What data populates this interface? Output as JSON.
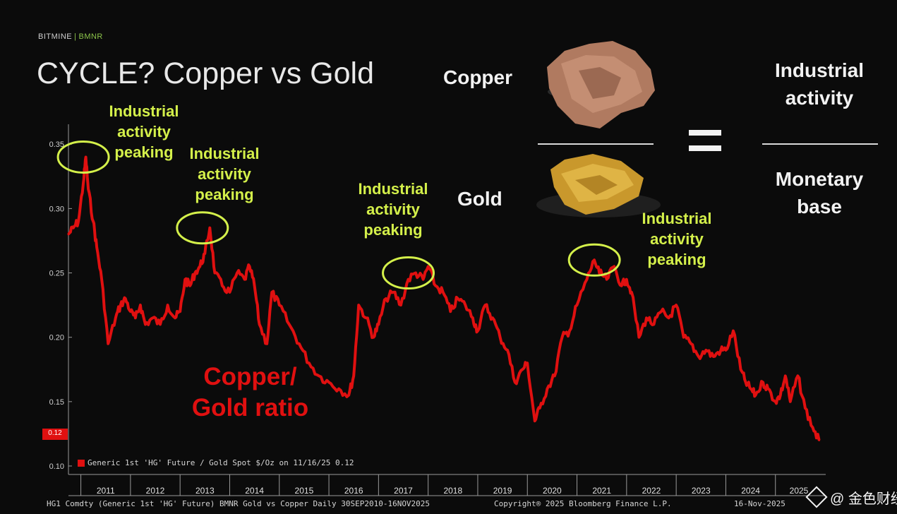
{
  "header": {
    "brand": "BITMINE",
    "separator": "|",
    "ticker": "BMNR",
    "title": "CYCLE? Copper vs Gold"
  },
  "concept": {
    "copper_label": "Copper",
    "gold_label": "Gold",
    "equals": "=",
    "numerator": "Industrial activity",
    "denominator": "Monetary base"
  },
  "annotations": [
    {
      "text": "Industrial activity peaking"
    },
    {
      "text": "Industrial activity peaking"
    },
    {
      "text": "Industrial activity peaking"
    },
    {
      "text": "Industrial activity peaking"
    }
  ],
  "series_label": "Copper/ Gold ratio",
  "legend_text": "Generic 1st 'HG' Future / Gold Spot $/Oz on 11/16/25 0.12",
  "last_value_tag": "0.12",
  "footer": {
    "left": "HG1 Comdty (Generic 1st 'HG' Future) BMNR Gold vs Copper Daily 30SEP2010-16NOV2025",
    "center": "Copyright® 2025 Bloomberg Finance L.P.",
    "right": "16-Nov-2025"
  },
  "watermark": "@ 金色财经",
  "colors": {
    "background": "#0b0b0b",
    "series": "#e01010",
    "annotation": "#d4f04a",
    "axis": "#9a9a9a"
  },
  "icons": {
    "copper": "copper-nugget-icon",
    "gold": "gold-nugget-icon"
  },
  "chart_data": {
    "type": "line",
    "title": "CYCLE? Copper vs Gold",
    "xlabel": "",
    "ylabel": "",
    "ylim": [
      0.1,
      0.36
    ],
    "yticks": [
      "0.10",
      "0.15",
      "0.20",
      "0.25",
      "0.30",
      "0.35"
    ],
    "xlim": [
      2010.75,
      2025.9
    ],
    "xticks": [
      "2011",
      "2012",
      "2013",
      "2014",
      "2015",
      "2016",
      "2017",
      "2018",
      "2019",
      "2020",
      "2021",
      "2022",
      "2023",
      "2024",
      "2025"
    ],
    "series": [
      {
        "name": "Generic 1st 'HG' Future / Gold Spot $/Oz",
        "x": [
          2010.75,
          2010.85,
          2010.95,
          2011.05,
          2011.1,
          2011.15,
          2011.25,
          2011.32,
          2011.42,
          2011.55,
          2011.7,
          2011.8,
          2011.9,
          2012.0,
          2012.1,
          2012.2,
          2012.3,
          2012.45,
          2012.6,
          2012.75,
          2012.9,
          2013.0,
          2013.1,
          2013.2,
          2013.3,
          2013.4,
          2013.5,
          2013.6,
          2013.7,
          2013.85,
          2014.0,
          2014.15,
          2014.3,
          2014.4,
          2014.5,
          2014.6,
          2014.75,
          2014.85,
          2015.0,
          2015.2,
          2015.4,
          2015.6,
          2015.8,
          2016.0,
          2016.2,
          2016.4,
          2016.5,
          2016.6,
          2016.75,
          2016.9,
          2017.0,
          2017.15,
          2017.3,
          2017.45,
          2017.6,
          2017.75,
          2017.9,
          2018.0,
          2018.15,
          2018.3,
          2018.45,
          2018.6,
          2018.75,
          2018.9,
          2019.0,
          2019.15,
          2019.3,
          2019.45,
          2019.6,
          2019.75,
          2019.9,
          2020.0,
          2020.15,
          2020.25,
          2020.4,
          2020.55,
          2020.7,
          2020.85,
          2021.0,
          2021.2,
          2021.35,
          2021.45,
          2021.6,
          2021.75,
          2021.9,
          2022.0,
          2022.1,
          2022.25,
          2022.4,
          2022.55,
          2022.7,
          2022.85,
          2023.0,
          2023.15,
          2023.3,
          2023.45,
          2023.6,
          2023.75,
          2023.9,
          2024.0,
          2024.15,
          2024.3,
          2024.4,
          2024.5,
          2024.6,
          2024.75,
          2024.85,
          2025.0,
          2025.1,
          2025.2,
          2025.3,
          2025.45,
          2025.6,
          2025.75,
          2025.88
        ],
        "y": [
          0.28,
          0.285,
          0.29,
          0.32,
          0.34,
          0.315,
          0.29,
          0.27,
          0.245,
          0.195,
          0.215,
          0.225,
          0.23,
          0.22,
          0.215,
          0.225,
          0.21,
          0.215,
          0.21,
          0.225,
          0.215,
          0.22,
          0.245,
          0.24,
          0.25,
          0.255,
          0.265,
          0.285,
          0.25,
          0.24,
          0.235,
          0.25,
          0.245,
          0.255,
          0.24,
          0.21,
          0.195,
          0.235,
          0.225,
          0.21,
          0.195,
          0.18,
          0.17,
          0.165,
          0.16,
          0.155,
          0.17,
          0.225,
          0.215,
          0.2,
          0.21,
          0.23,
          0.235,
          0.225,
          0.245,
          0.25,
          0.245,
          0.255,
          0.24,
          0.235,
          0.22,
          0.23,
          0.225,
          0.215,
          0.205,
          0.225,
          0.215,
          0.2,
          0.19,
          0.165,
          0.175,
          0.18,
          0.135,
          0.145,
          0.16,
          0.17,
          0.2,
          0.205,
          0.225,
          0.245,
          0.26,
          0.25,
          0.245,
          0.255,
          0.24,
          0.245,
          0.235,
          0.2,
          0.215,
          0.21,
          0.22,
          0.215,
          0.225,
          0.2,
          0.195,
          0.185,
          0.19,
          0.185,
          0.19,
          0.19,
          0.205,
          0.175,
          0.165,
          0.16,
          0.155,
          0.165,
          0.16,
          0.15,
          0.155,
          0.17,
          0.15,
          0.17,
          0.145,
          0.13,
          0.12
        ]
      }
    ],
    "annotation_years": [
      2011.05,
      2013.45,
      2017.6,
      2021.35
    ],
    "last_value": 0.12
  }
}
